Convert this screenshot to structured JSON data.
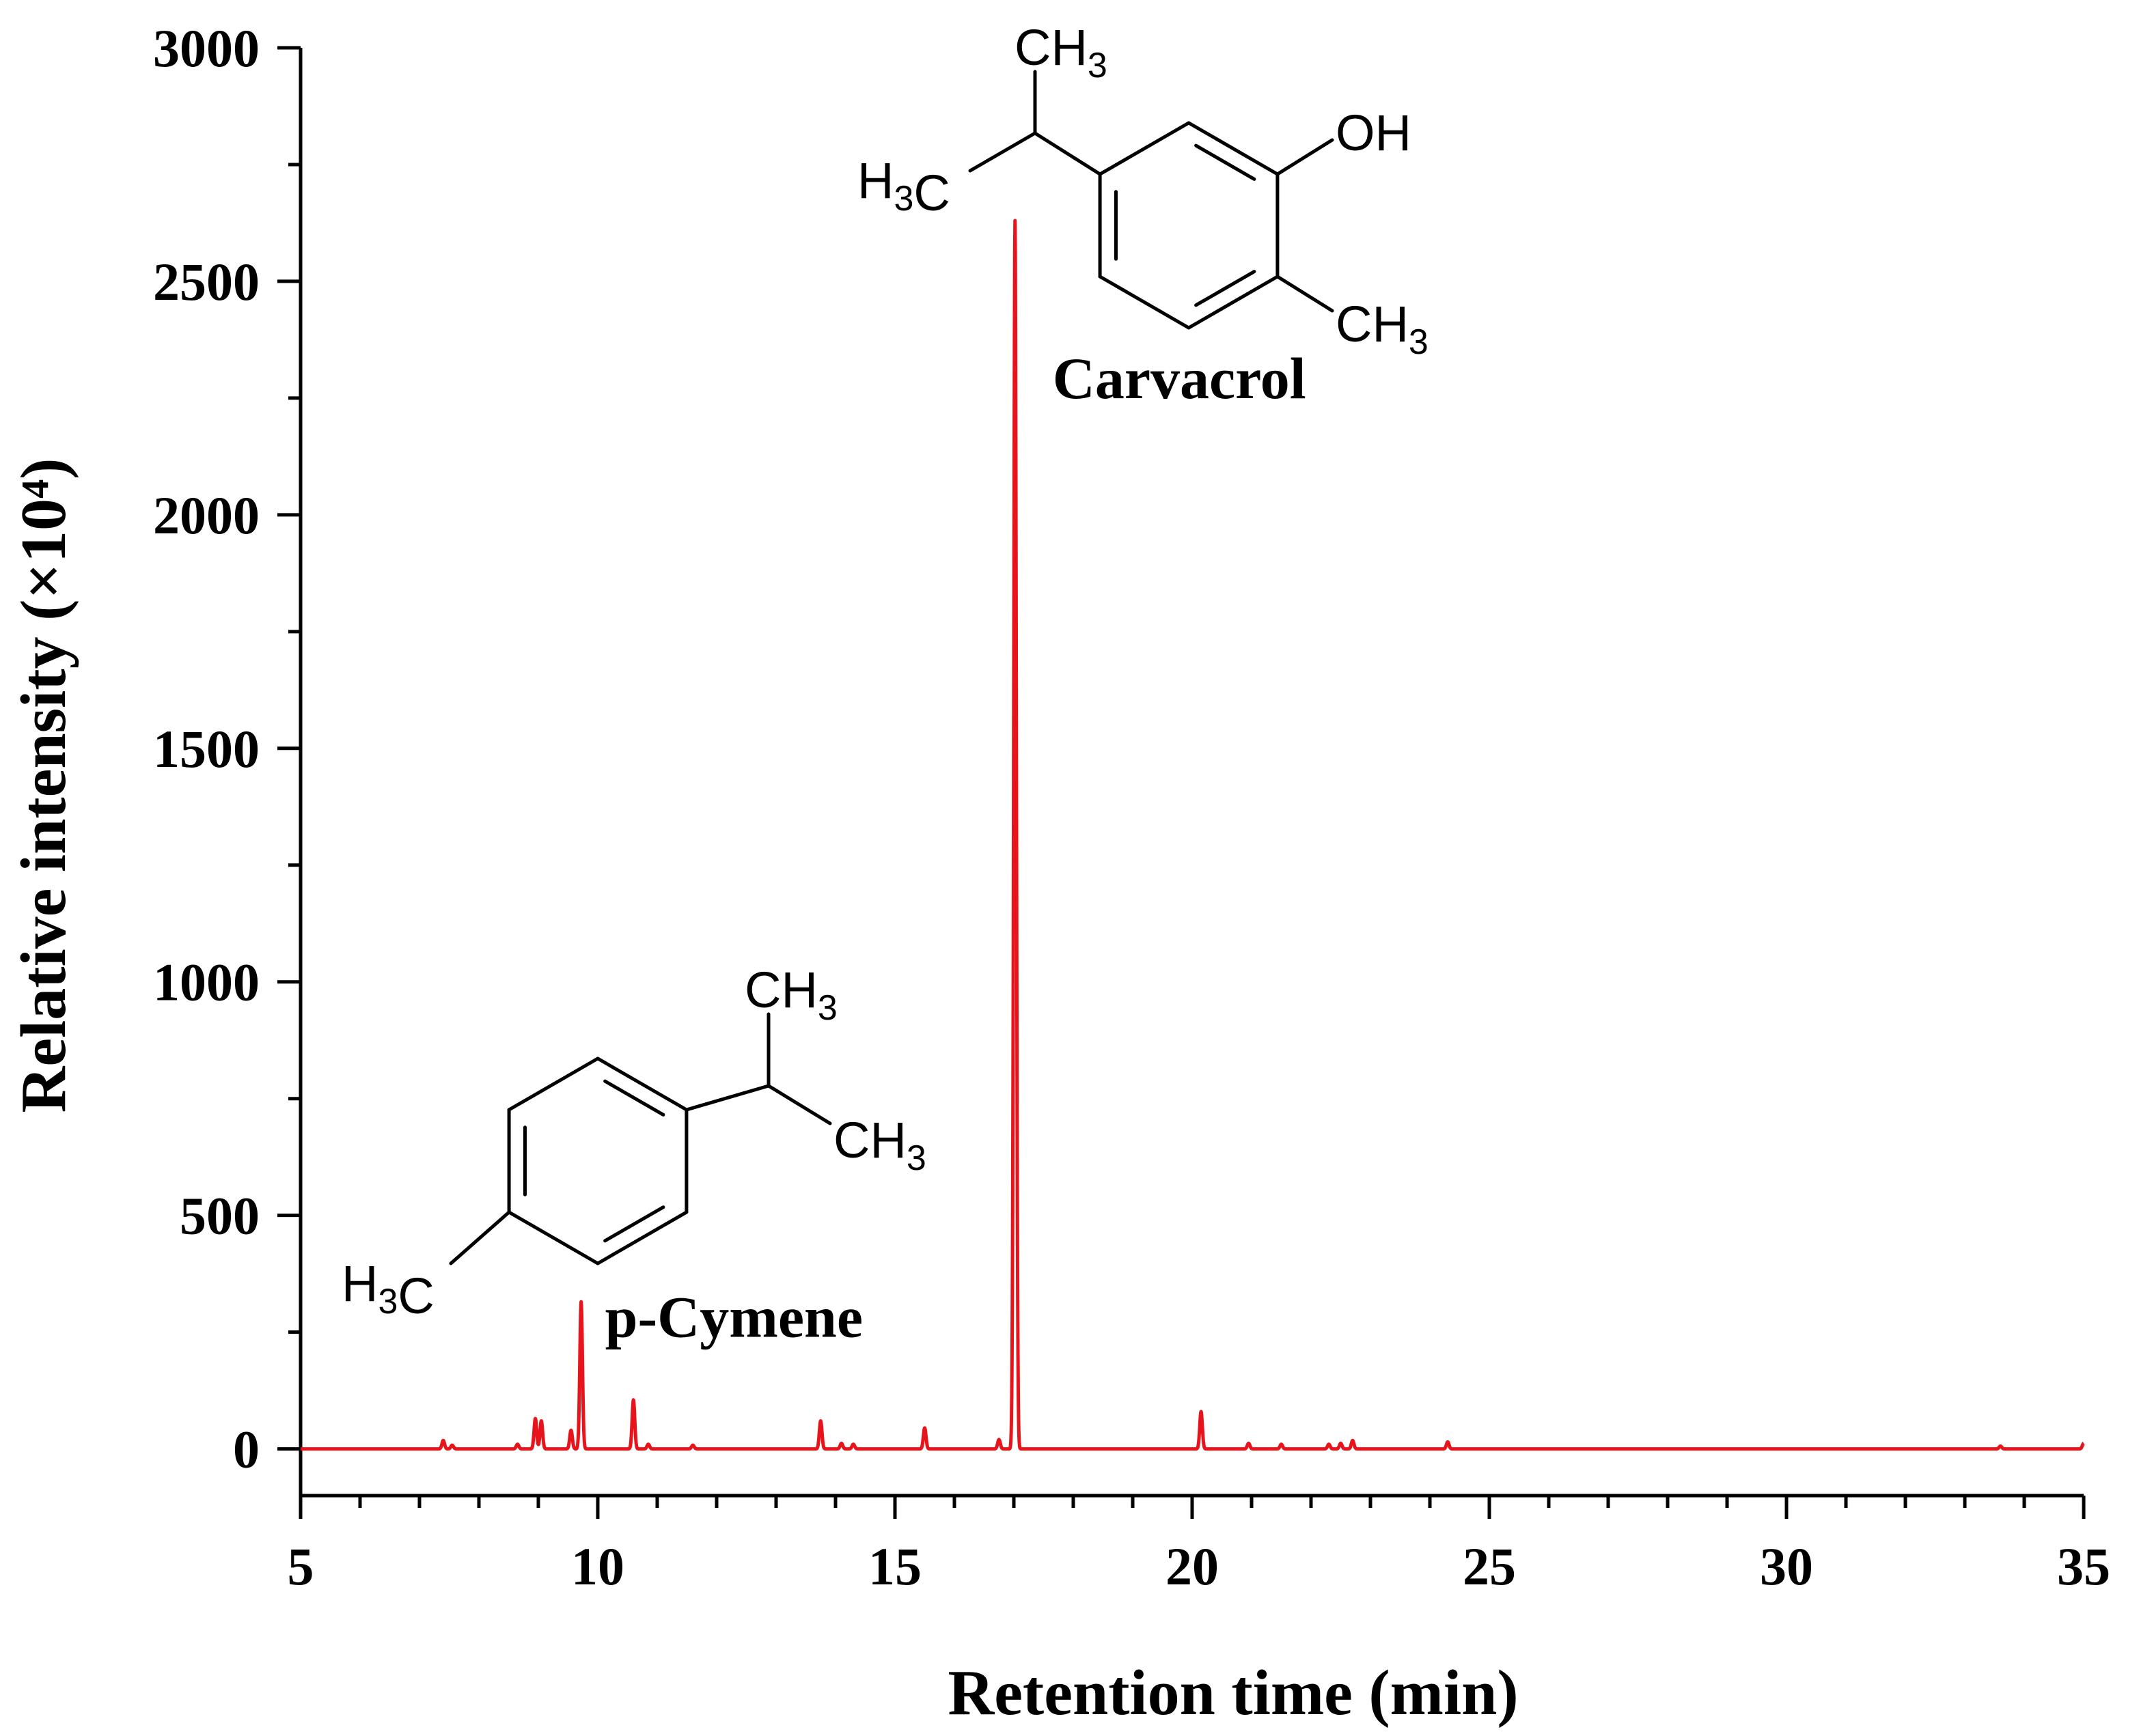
{
  "chart_data": {
    "type": "line",
    "xlabel": "Retention time (min)",
    "ylabel": "Relative intensity (×10⁴)",
    "xlim": [
      5,
      35
    ],
    "ylim": [
      -100,
      3000
    ],
    "x_ticks": [
      5,
      10,
      15,
      20,
      25,
      30,
      35
    ],
    "y_ticks": [
      0,
      500,
      1000,
      1500,
      2000,
      2500,
      3000
    ],
    "x_tick_labels": [
      "5",
      "10",
      "15",
      "20",
      "25",
      "30",
      "35"
    ],
    "y_tick_labels": [
      "0",
      "500",
      "1000",
      "1500",
      "2000",
      "2500",
      "3000"
    ],
    "grid": false,
    "line_color": "#e8141b",
    "series": [
      {
        "peaks": [
          {
            "x": 7.4,
            "y": 18
          },
          {
            "x": 7.55,
            "y": 8
          },
          {
            "x": 8.65,
            "y": 10
          },
          {
            "x": 8.95,
            "y": 65
          },
          {
            "x": 9.05,
            "y": 60
          },
          {
            "x": 9.55,
            "y": 40
          },
          {
            "x": 9.72,
            "y": 315
          },
          {
            "x": 10.6,
            "y": 105
          },
          {
            "x": 10.85,
            "y": 10
          },
          {
            "x": 11.6,
            "y": 8
          },
          {
            "x": 13.75,
            "y": 60
          },
          {
            "x": 14.1,
            "y": 12
          },
          {
            "x": 14.3,
            "y": 10
          },
          {
            "x": 15.5,
            "y": 45
          },
          {
            "x": 16.75,
            "y": 20
          },
          {
            "x": 17.02,
            "y": 2630
          },
          {
            "x": 20.15,
            "y": 80
          },
          {
            "x": 20.95,
            "y": 12
          },
          {
            "x": 21.5,
            "y": 10
          },
          {
            "x": 22.3,
            "y": 10
          },
          {
            "x": 22.5,
            "y": 12
          },
          {
            "x": 22.7,
            "y": 18
          },
          {
            "x": 24.3,
            "y": 15
          },
          {
            "x": 33.6,
            "y": 6
          },
          {
            "x": 35.0,
            "y": 12
          }
        ]
      }
    ],
    "annotations": [
      {
        "text": "Carvacrol",
        "x": 17.02,
        "y": 2630
      },
      {
        "text": "p-Cymene",
        "x": 9.72,
        "y": 315
      }
    ]
  },
  "structures": {
    "carvacrol": {
      "groups": {
        "top": "CH3",
        "left": "H3C",
        "oh": "OH",
        "right": "CH3"
      }
    },
    "cymene": {
      "groups": {
        "top": "CH3",
        "right": "CH3",
        "left": "H3C"
      }
    }
  }
}
